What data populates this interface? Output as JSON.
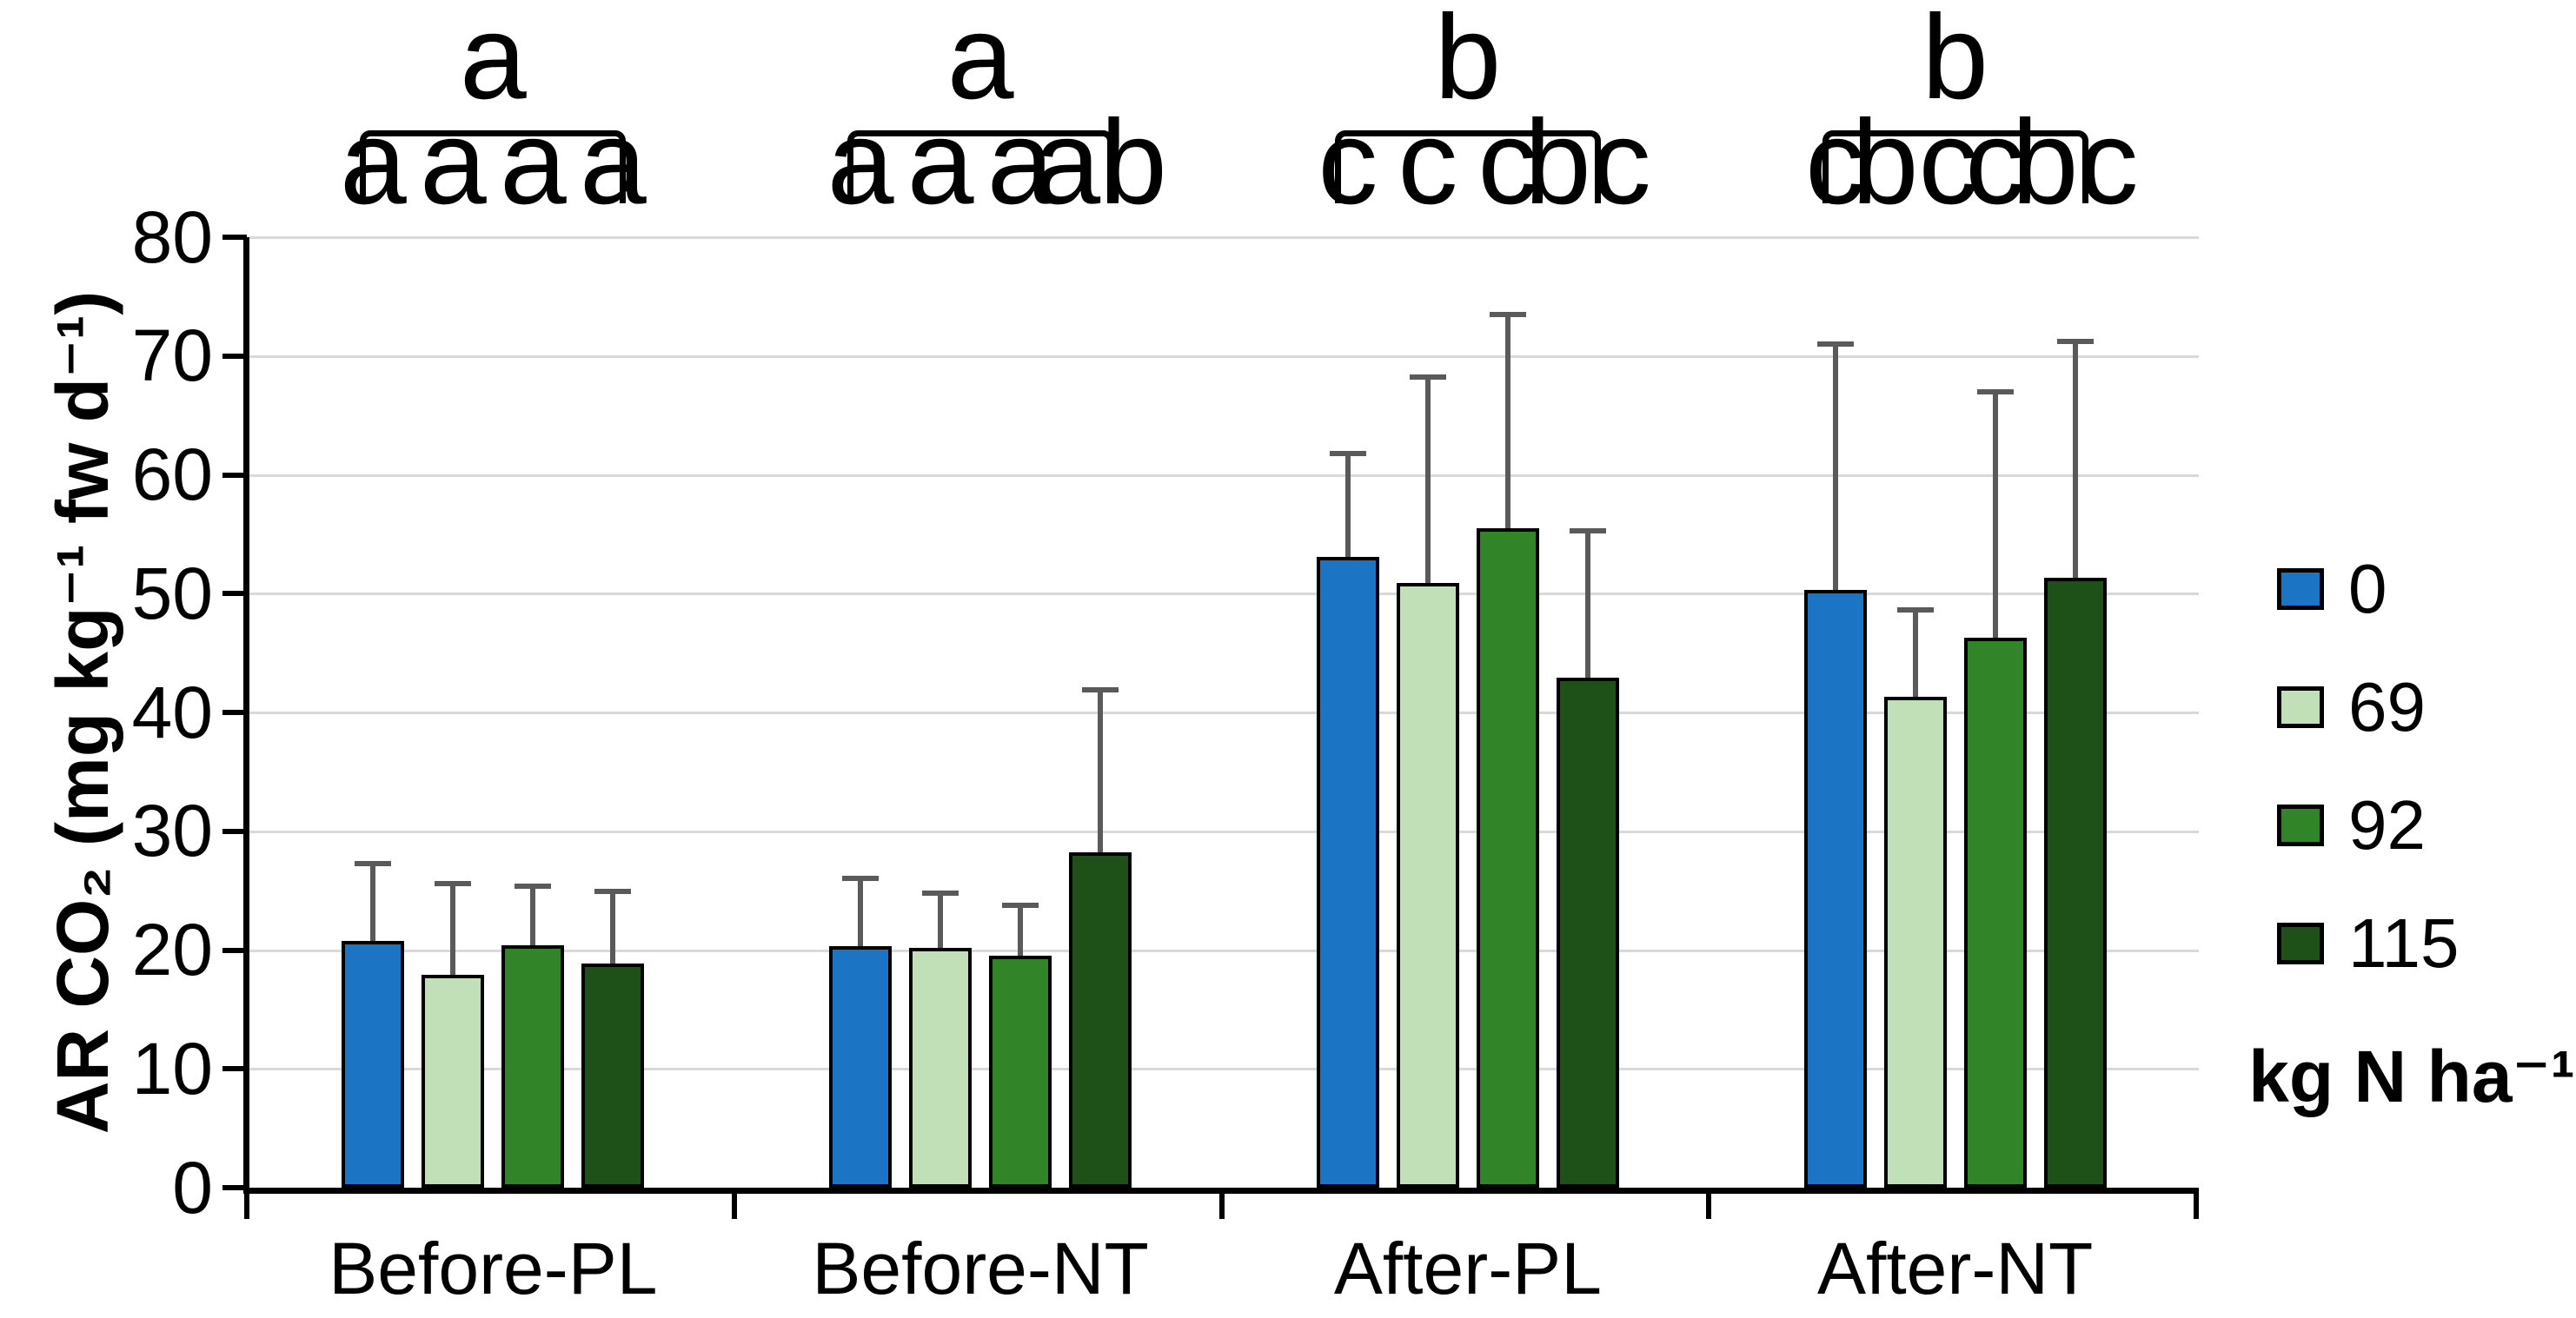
{
  "figure": {
    "y_axis_title": "AR CO₂ (mg kg⁻¹ fw d⁻¹)",
    "legend": {
      "title": "kg N ha⁻¹",
      "items": [
        {
          "label": "0",
          "color": "#1B75C4"
        },
        {
          "label": "69",
          "color": "#C1E0B8"
        },
        {
          "label": "92",
          "color": "#318427"
        },
        {
          "label": "115",
          "color": "#1D5117"
        }
      ]
    },
    "colors": {
      "axis": "#000000",
      "gridline": "#D9D9D9",
      "error_bar": "#5A5A5A"
    }
  },
  "chart_data": {
    "type": "bar",
    "title": "",
    "xlabel": "",
    "ylabel": "AR CO₂ (mg kg⁻¹ fw d⁻¹)",
    "ylim": [
      0,
      80
    ],
    "ytick_step": 10,
    "yticks": [
      0,
      10,
      20,
      30,
      40,
      50,
      60,
      70,
      80
    ],
    "grid": true,
    "legend_position": "right",
    "legend_title": "kg N ha⁻¹",
    "categories": [
      "Before-PL",
      "Before-NT",
      "After-PL",
      "After-NT"
    ],
    "series": [
      {
        "name": "0",
        "color": "#1B75C4",
        "values": [
          20.8,
          20.3,
          53.1,
          50.3
        ],
        "errors_up": [
          6.5,
          5.7,
          8.7,
          20.7
        ]
      },
      {
        "name": "69",
        "color": "#C1E0B8",
        "values": [
          17.9,
          20.2,
          50.9,
          41.3
        ],
        "errors_up": [
          7.7,
          4.6,
          17.3,
          7.3
        ]
      },
      {
        "name": "92",
        "color": "#318427",
        "values": [
          20.4,
          19.5,
          55.5,
          46.3
        ],
        "errors_up": [
          5.0,
          4.3,
          18.0,
          20.7
        ]
      },
      {
        "name": "115",
        "color": "#1D5117",
        "values": [
          18.9,
          28.2,
          42.9,
          51.3
        ],
        "errors_up": [
          6.0,
          13.7,
          12.4,
          19.9
        ]
      }
    ],
    "bar_letters": [
      [
        "a",
        "a",
        "a",
        "a"
      ],
      [
        "a",
        "a",
        "a",
        "ab"
      ],
      [
        "c",
        "c",
        "c",
        "bc"
      ],
      [
        "c",
        "bc",
        "c",
        "bc"
      ]
    ],
    "group_letters": [
      "a",
      "a",
      "b",
      "b"
    ]
  }
}
